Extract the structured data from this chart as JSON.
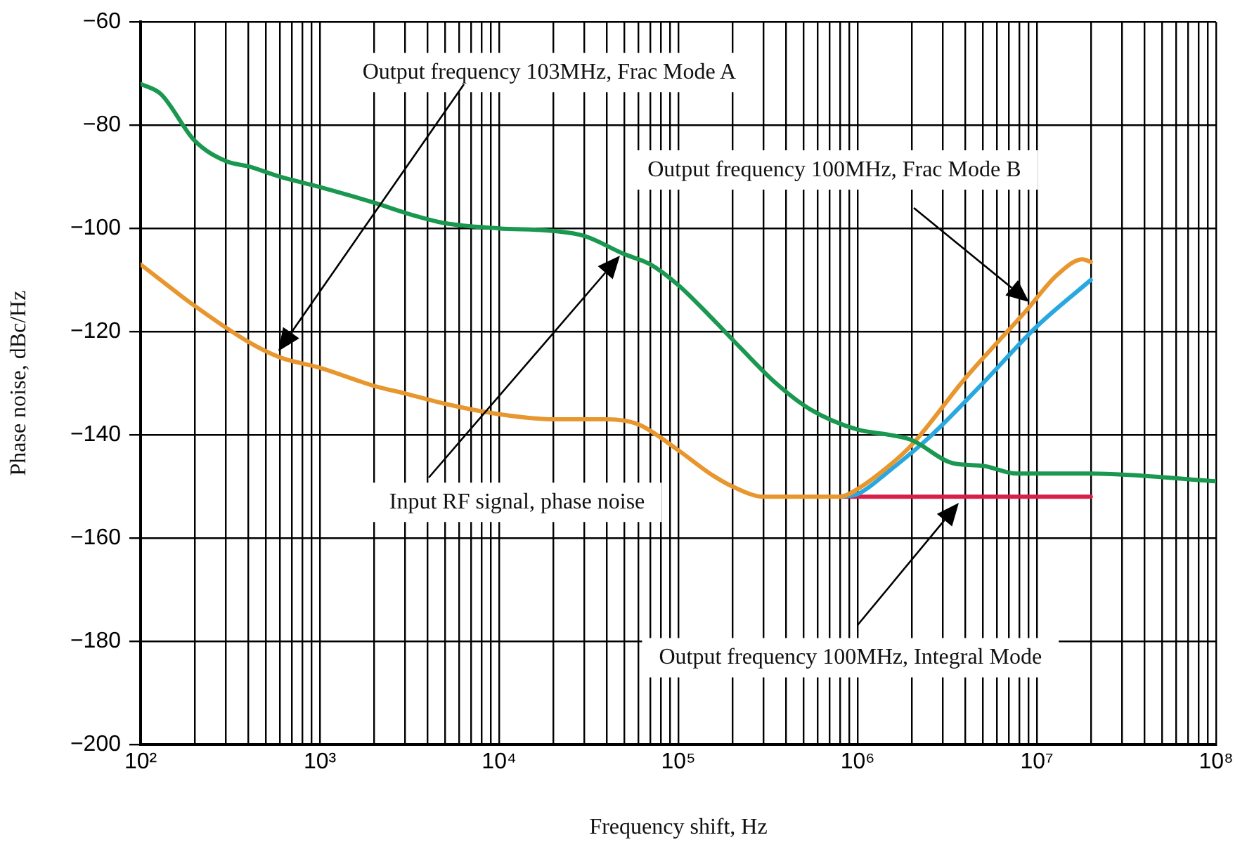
{
  "chart_data": {
    "type": "line",
    "xlabel": "Frequency shift, Hz",
    "ylabel": "Phase noise, dBc/Hz",
    "log": "x",
    "grid": true,
    "marker": "none",
    "line_style": "solid",
    "legend": false,
    "xlim": [
      100,
      100000000
    ],
    "ylim": [
      -200,
      -60
    ],
    "xticks": [
      {
        "value": 100,
        "label": "10²"
      },
      {
        "value": 200,
        "label": null
      },
      {
        "value": 300,
        "label": null
      },
      {
        "value": 400,
        "label": null
      },
      {
        "value": 500,
        "label": null
      },
      {
        "value": 600,
        "label": null
      },
      {
        "value": 700,
        "label": null
      },
      {
        "value": 800,
        "label": null
      },
      {
        "value": 900,
        "label": null
      },
      {
        "value": 1000,
        "label": "10³"
      },
      {
        "value": 2000,
        "label": null
      },
      {
        "value": 3000,
        "label": null
      },
      {
        "value": 4000,
        "label": null
      },
      {
        "value": 5000,
        "label": null
      },
      {
        "value": 6000,
        "label": null
      },
      {
        "value": 7000,
        "label": null
      },
      {
        "value": 8000,
        "label": null
      },
      {
        "value": 9000,
        "label": null
      },
      {
        "value": 10000,
        "label": "10⁴"
      },
      {
        "value": 20000,
        "label": null
      },
      {
        "value": 30000,
        "label": null
      },
      {
        "value": 40000,
        "label": null
      },
      {
        "value": 50000,
        "label": null
      },
      {
        "value": 60000,
        "label": null
      },
      {
        "value": 70000,
        "label": null
      },
      {
        "value": 80000,
        "label": null
      },
      {
        "value": 90000,
        "label": null
      },
      {
        "value": 100000,
        "label": "10⁵"
      },
      {
        "value": 200000,
        "label": null
      },
      {
        "value": 300000,
        "label": null
      },
      {
        "value": 400000,
        "label": null
      },
      {
        "value": 500000,
        "label": null
      },
      {
        "value": 600000,
        "label": null
      },
      {
        "value": 700000,
        "label": null
      },
      {
        "value": 800000,
        "label": null
      },
      {
        "value": 900000,
        "label": null
      },
      {
        "value": 1000000,
        "label": "10⁶"
      },
      {
        "value": 2000000,
        "label": null
      },
      {
        "value": 3000000,
        "label": null
      },
      {
        "value": 4000000,
        "label": null
      },
      {
        "value": 5000000,
        "label": null
      },
      {
        "value": 6000000,
        "label": null
      },
      {
        "value": 7000000,
        "label": null
      },
      {
        "value": 8000000,
        "label": null
      },
      {
        "value": 9000000,
        "label": null
      },
      {
        "value": 10000000,
        "label": "10⁷"
      },
      {
        "value": 20000000,
        "label": null
      },
      {
        "value": 30000000,
        "label": null
      },
      {
        "value": 40000000,
        "label": null
      },
      {
        "value": 50000000,
        "label": null
      },
      {
        "value": 60000000,
        "label": null
      },
      {
        "value": 70000000,
        "label": null
      },
      {
        "value": 80000000,
        "label": null
      },
      {
        "value": 90000000,
        "label": null
      },
      {
        "value": 100000000,
        "label": "10⁸"
      }
    ],
    "yticks": [
      {
        "value": -200,
        "label": "−200"
      },
      {
        "value": -180,
        "label": "−180"
      },
      {
        "value": -160,
        "label": "−160"
      },
      {
        "value": -140,
        "label": "−140"
      },
      {
        "value": -120,
        "label": "−120"
      },
      {
        "value": -100,
        "label": "−100"
      },
      {
        "value": -80,
        "label": "−80"
      },
      {
        "value": -60,
        "label": "−60"
      }
    ],
    "series": [
      {
        "color": "#1a9850",
        "x": [
          100,
          130,
          200,
          300,
          400,
          600,
          1000,
          2000,
          3000,
          5000,
          10000,
          20000,
          30000,
          50000,
          70000,
          100000,
          150000,
          220000,
          350000,
          540000,
          1000000,
          1500000,
          2000000,
          3400000,
          5000000,
          7700000,
          20000000,
          100000000
        ],
        "values": [
          -72,
          -74,
          -83,
          -87,
          -88,
          -90,
          -92,
          -95,
          -97,
          -99,
          -100,
          -100.5,
          -101.5,
          -105,
          -107,
          -111,
          -117,
          -123,
          -130,
          -135,
          -139,
          -140,
          -141,
          -145.5,
          -146,
          -147.5,
          -147.5,
          -149
        ]
      },
      {
        "color": "#e8962e",
        "x": [
          100,
          200,
          400,
          600,
          1000,
          2000,
          3000,
          5000,
          10000,
          20000,
          40000,
          60000,
          100000,
          150000,
          200000,
          300000,
          500000,
          800000,
          1000000,
          1500000,
          2000000,
          4000000,
          8700000,
          13000000,
          18000000,
          20000000
        ],
        "values": [
          -107,
          -115,
          -122,
          -125,
          -127,
          -130.5,
          -132,
          -134,
          -136,
          -137,
          -137,
          -138,
          -143,
          -147.5,
          -150,
          -152,
          -152,
          -152,
          -150.5,
          -146,
          -142,
          -129,
          -116,
          -109,
          -106,
          -106.5
        ]
      },
      {
        "color": "#29a8e0",
        "x": [
          800000,
          1000000,
          1500000,
          2600000,
          5000000,
          10000000,
          20000000
        ],
        "values": [
          -152,
          -151.5,
          -147,
          -140,
          -130,
          -119,
          -110
        ]
      },
      {
        "color": "#d6204a",
        "x": [
          800000,
          20000000
        ],
        "values": [
          -152,
          -152
        ]
      }
    ],
    "annotations": [
      "Output frequency 103MHz, Frac Mode A",
      "Output frequency 100MHz, Frac Mode B",
      "Input RF signal, phase noise",
      "Output frequency 100MHz, Integral Mode"
    ]
  }
}
